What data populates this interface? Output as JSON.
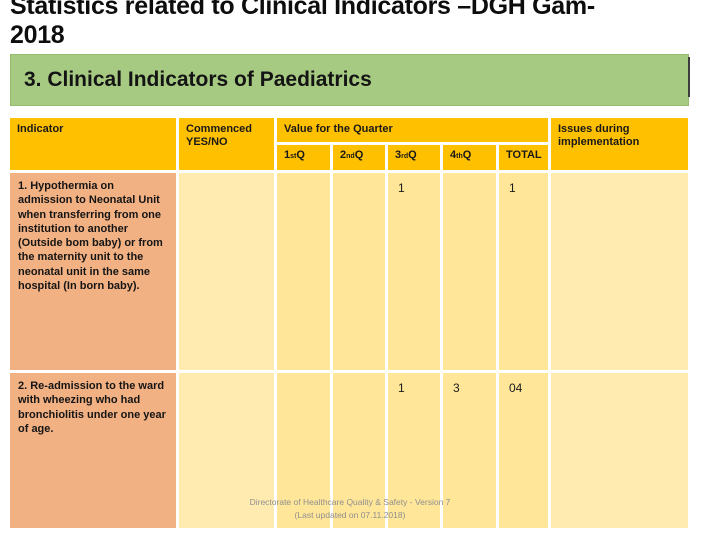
{
  "slide": {
    "title_line1": "Statistics related to Clinical Indicators –DGH Gam-",
    "title_line2": "2018",
    "section_banner": "3. Clinical Indicators of Paediatrics"
  },
  "colors": {
    "banner_green": "#a7ca82",
    "header_amber": "#ffc000",
    "cell_yellow": "#ffe699",
    "cell_yellow_light": "#ffeab0",
    "indicator_salmon": "#f2b183",
    "footer_gray": "#8f8f8f"
  },
  "table": {
    "headers": {
      "indicator": "Indicator",
      "commenced": "Commenced YES/NO",
      "value_for_quarter": "Value for the Quarter",
      "total": "TOTAL",
      "issues": "Issues during implementation"
    },
    "quarter_headers": [
      {
        "base": "1",
        "sup": "st",
        "suffix": " Q"
      },
      {
        "base": "2",
        "sup": "nd",
        "suffix": " Q"
      },
      {
        "base": "3",
        "sup": "rd",
        "suffix": " Q"
      },
      {
        "base": "4",
        "sup": "th",
        "suffix": " Q"
      }
    ],
    "rows": [
      {
        "indicator": "1. Hypothermia on admission to Neonatal Unit when transferring from one institution to another (Outside bom baby) or from the maternity unit to the neonatal unit in the same hospital (In born baby).",
        "commenced": "",
        "q1": "",
        "q2": "",
        "q3": "1",
        "q4": "",
        "total": "1",
        "issues": ""
      },
      {
        "indicator": "2. Re-admission to the ward with wheezing who had bronchiolitis under one year of age.",
        "commenced": "",
        "q1": "",
        "q2": "",
        "q3": "1",
        "q4": "3",
        "total": "04",
        "issues": ""
      }
    ]
  },
  "footer": {
    "line1": "Directorate of Healthcare Quality & Safety - Version 7",
    "line2": "(Last updated on 07.11.2018)"
  }
}
